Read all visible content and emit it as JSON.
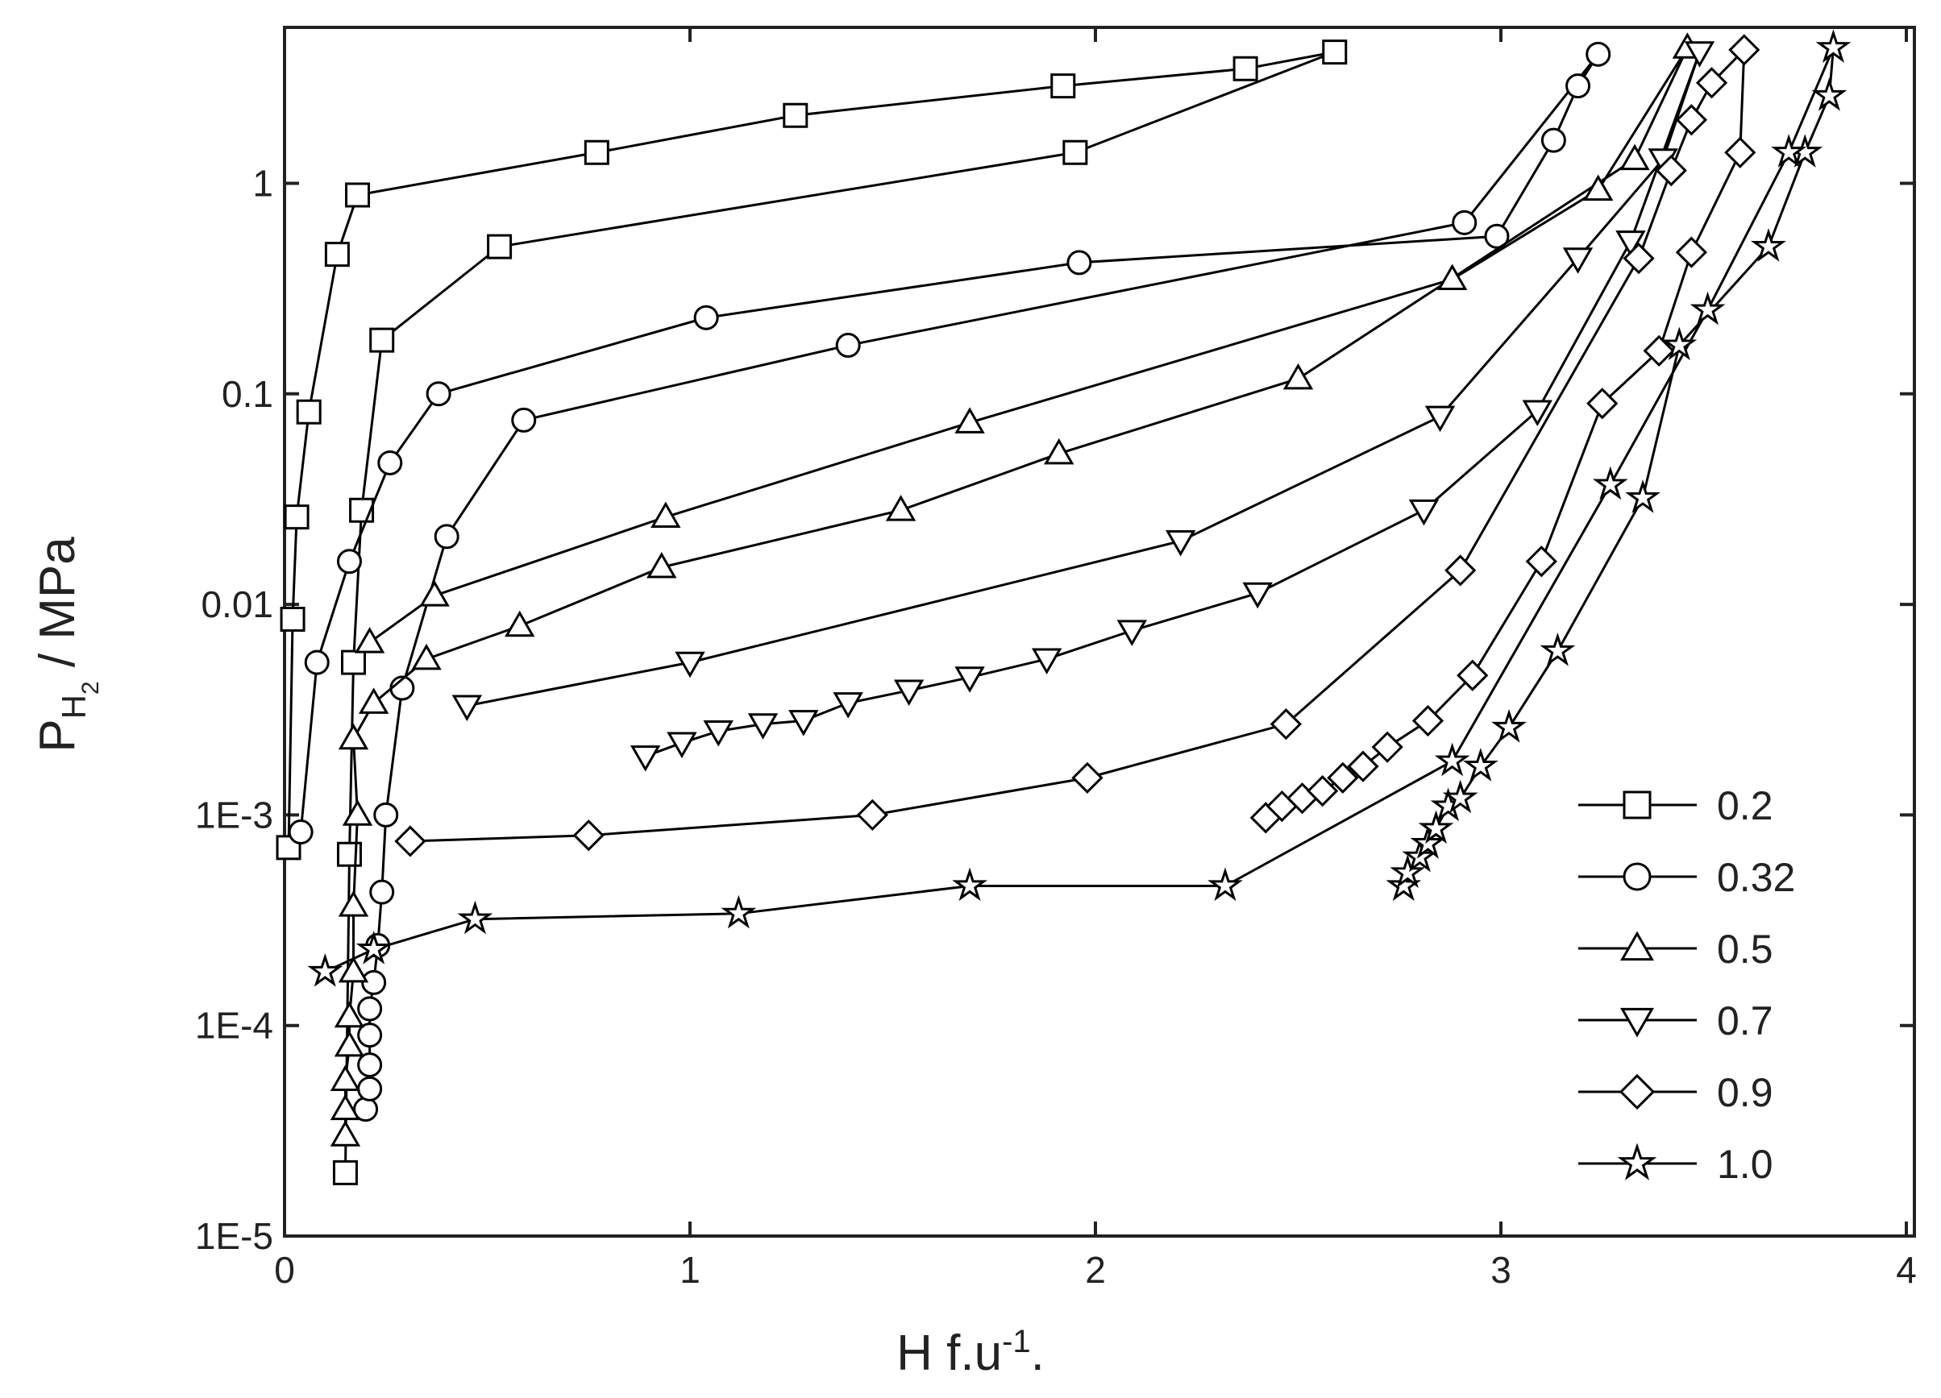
{
  "chart_data": {
    "type": "scatter-line",
    "xlabel": [
      "H f.u",
      "-1",
      "."
    ],
    "ylabel": [
      "P",
      "H",
      "2",
      " / MPa"
    ],
    "xlim": [
      0,
      4
    ],
    "xticks": [
      0,
      1,
      2,
      3,
      4
    ],
    "ylim": [
      1e-05,
      5.5
    ],
    "ylog": true,
    "yticks": [
      {
        "value": 1e-05,
        "label": "1E-5"
      },
      {
        "value": 0.0001,
        "label": "1E-4"
      },
      {
        "value": 0.001,
        "label": "1E-3"
      },
      0.01,
      0.1,
      1
    ],
    "grid": false,
    "legend": "lower right",
    "series": [
      {
        "name": "0.2",
        "color": "#000000",
        "marker": "square",
        "x": [
          0.01,
          0.02,
          0.03,
          0.06,
          0.13,
          0.18,
          0.77,
          1.26,
          1.92,
          2.37,
          2.59,
          1.95,
          0.53,
          0.24,
          0.19,
          0.17,
          0.16,
          0.15
        ],
        "values": [
          0.0007,
          0.0085,
          0.026,
          0.082,
          0.46,
          0.88,
          1.4,
          2.1,
          2.9,
          3.5,
          4.2,
          1.4,
          0.5,
          0.18,
          0.028,
          0.0053,
          0.00065,
          2e-05
        ]
      },
      {
        "name": "0.32",
        "color": "#000000",
        "marker": "circle",
        "x": [
          0.2,
          0.21,
          0.21,
          0.21,
          0.21,
          0.22,
          0.23,
          0.24,
          0.25,
          0.29,
          0.4,
          0.59,
          1.39,
          2.91,
          3.24,
          3.19,
          3.13,
          2.99,
          1.96,
          1.04,
          0.38,
          0.26,
          0.16,
          0.08,
          0.04
        ],
        "values": [
          4e-05,
          5e-05,
          6.5e-05,
          9e-05,
          0.00012,
          0.00016,
          0.00024,
          0.00043,
          0.001,
          0.004,
          0.021,
          0.075,
          0.17,
          0.65,
          4.1,
          2.9,
          1.6,
          0.56,
          0.42,
          0.23,
          0.1,
          0.047,
          0.016,
          0.0053,
          0.00083
        ]
      },
      {
        "name": "0.5",
        "color": "#000000",
        "marker": "triangle",
        "x": [
          0.15,
          0.15,
          0.15,
          0.16,
          0.16,
          0.17,
          0.17,
          0.18,
          0.17,
          0.22,
          0.35,
          0.58,
          0.93,
          1.52,
          1.91,
          2.5,
          3.33,
          3.46,
          3.24,
          2.88,
          1.69,
          0.94,
          0.37,
          0.21
        ],
        "values": [
          3e-05,
          4e-05,
          5.5e-05,
          8e-05,
          0.00011,
          0.00018,
          0.00037,
          0.001,
          0.0023,
          0.0034,
          0.0055,
          0.0079,
          0.015,
          0.028,
          0.052,
          0.118,
          1.3,
          4.4,
          0.93,
          0.35,
          0.073,
          0.026,
          0.011,
          0.0066
        ]
      },
      {
        "name": "0.7",
        "color": "#000000",
        "marker": "triangle-down",
        "x": [
          0.89,
          0.98,
          1.07,
          1.18,
          1.28,
          1.39,
          1.54,
          1.69,
          1.88,
          2.09,
          2.4,
          2.81,
          3.09,
          3.32,
          3.49,
          3.4,
          3.19,
          2.85,
          2.21,
          1.0,
          0.45
        ],
        "values": [
          0.0019,
          0.0022,
          0.0025,
          0.0027,
          0.0028,
          0.0034,
          0.0039,
          0.0045,
          0.0055,
          0.0075,
          0.0113,
          0.028,
          0.083,
          0.53,
          4.2,
          1.3,
          0.44,
          0.078,
          0.02,
          0.0053,
          0.0033
        ]
      },
      {
        "name": "0.9",
        "color": "#000000",
        "marker": "diamond",
        "x": [
          2.42,
          2.46,
          2.51,
          2.56,
          2.61,
          2.66,
          2.72,
          2.82,
          2.93,
          3.1,
          3.25,
          3.39,
          3.47,
          3.59,
          3.6,
          3.52,
          3.47,
          3.42,
          3.34,
          2.9,
          2.47,
          1.98,
          1.45,
          0.75,
          0.31
        ],
        "values": [
          0.00097,
          0.0011,
          0.0012,
          0.0013,
          0.0015,
          0.0017,
          0.0021,
          0.0028,
          0.0046,
          0.016,
          0.09,
          0.16,
          0.47,
          1.4,
          4.3,
          3.0,
          2.0,
          1.15,
          0.44,
          0.0145,
          0.0027,
          0.0015,
          0.001,
          0.0008,
          0.00075
        ]
      },
      {
        "name": "1.0",
        "color": "#000000",
        "marker": "star",
        "x": [
          2.76,
          2.77,
          2.8,
          2.82,
          2.84,
          2.87,
          2.9,
          2.95,
          3.02,
          3.14,
          3.35,
          3.44,
          3.66,
          3.75,
          3.81,
          3.82,
          3.71,
          3.51,
          3.27,
          2.88,
          2.32,
          1.69,
          1.12,
          0.47,
          0.22,
          0.1
        ],
        "values": [
          0.00046,
          0.00053,
          0.00063,
          0.00073,
          0.00086,
          0.0011,
          0.0012,
          0.0017,
          0.0026,
          0.006,
          0.032,
          0.17,
          0.5,
          1.4,
          2.6,
          4.4,
          1.4,
          0.25,
          0.037,
          0.0018,
          0.00046,
          0.00046,
          0.00034,
          0.00032,
          0.00023,
          0.00018
        ]
      }
    ]
  }
}
